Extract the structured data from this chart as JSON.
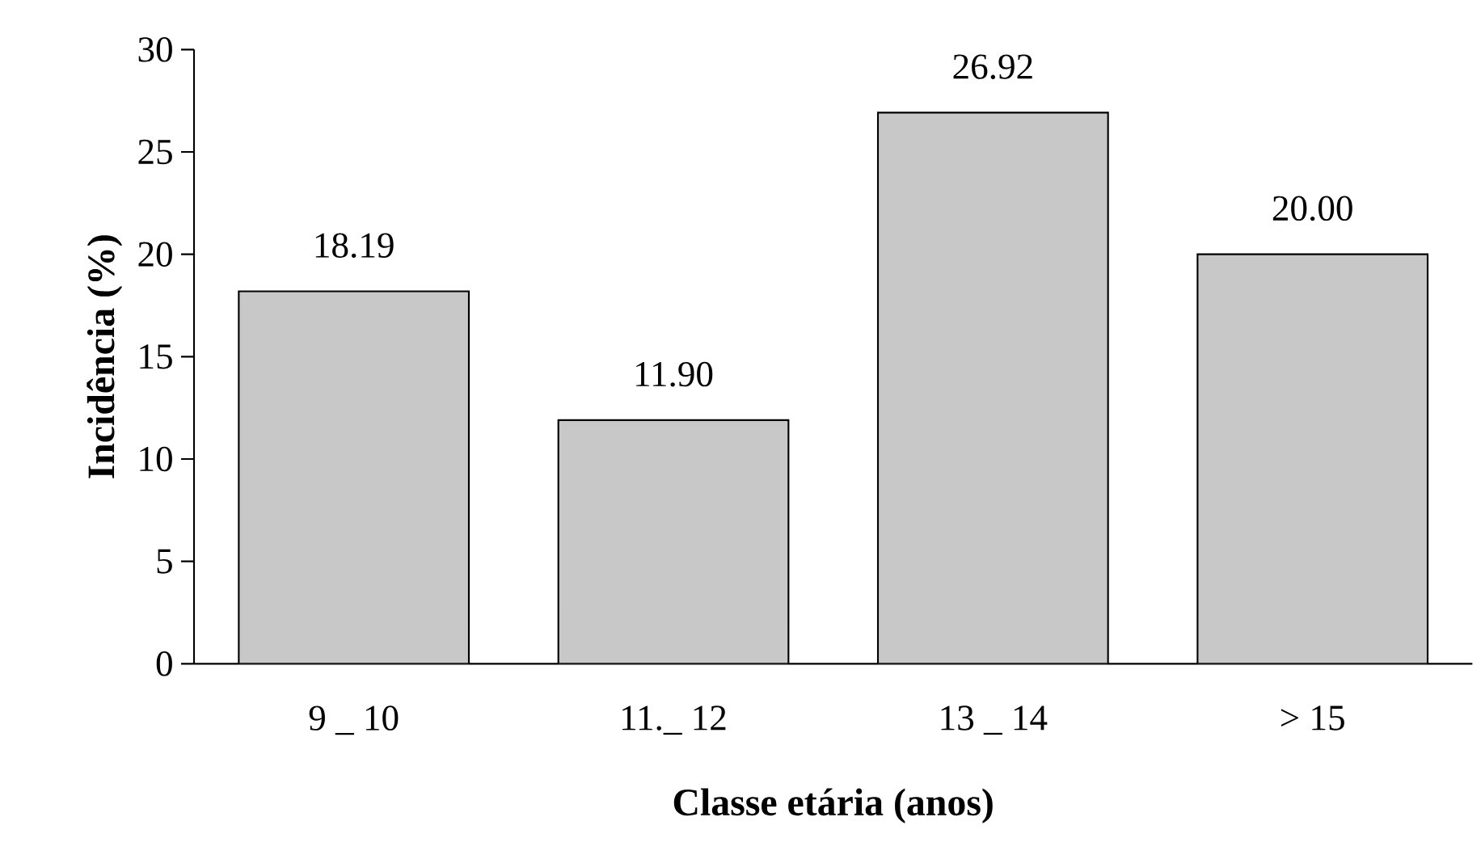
{
  "chart_data": {
    "type": "bar",
    "xlabel": "Classe etária (anos)",
    "ylabel": "Incidência (%)",
    "categories": [
      "9 _ 10",
      "11._ 12",
      "13 _ 14",
      "> 15"
    ],
    "values": [
      18.19,
      11.9,
      26.92,
      20.0
    ],
    "value_labels": [
      "18.19",
      "11.90",
      "26.92",
      "20.00"
    ],
    "color": "#c8c8c8",
    "ylim": [
      0,
      30
    ],
    "yticks": [
      0,
      5,
      10,
      15,
      20,
      25,
      30
    ],
    "grid": false
  }
}
